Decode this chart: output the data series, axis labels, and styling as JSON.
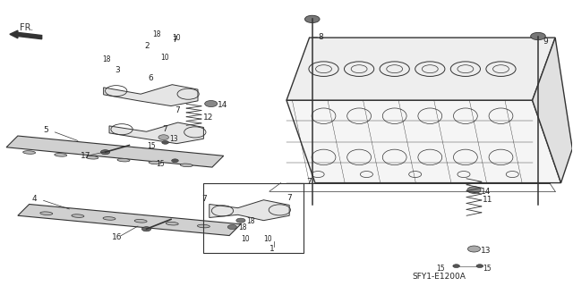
{
  "diagram_code": "SFY1-E1200A",
  "background_color": "#ffffff",
  "line_color": "#333333",
  "text_color": "#222222"
}
